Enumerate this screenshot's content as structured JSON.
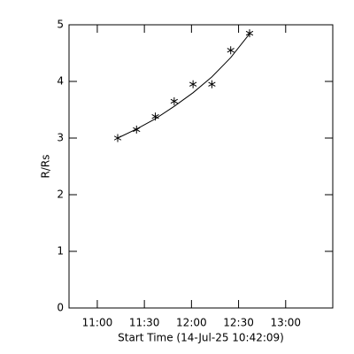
{
  "chart_data": {
    "type": "scatter",
    "xlabel": "Start Time (14-Jul-25 10:42:09)",
    "ylabel": "R/Rs",
    "x": [
      13,
      25,
      37,
      49,
      61,
      73,
      85,
      97
    ],
    "series": [
      {
        "mode": "markers",
        "color": "#000000",
        "values": [
          3.0,
          3.15,
          3.38,
          3.65,
          3.95,
          3.95,
          4.55,
          4.85
        ]
      },
      {
        "mode": "lines",
        "color": "#000000",
        "values": [
          3.0,
          3.16,
          3.34,
          3.56,
          3.8,
          4.08,
          4.42,
          4.84
        ]
      }
    ],
    "xlim": [
      -18,
      150
    ],
    "xticks": [
      {
        "value": 0,
        "label": "11:00"
      },
      {
        "value": 30,
        "label": "11:30"
      },
      {
        "value": 60,
        "label": "12:00"
      },
      {
        "value": 90,
        "label": "12:30"
      },
      {
        "value": 120,
        "label": "13:00"
      }
    ],
    "ylim": [
      0,
      5
    ],
    "yticks": [
      0,
      1,
      2,
      3,
      4,
      5
    ],
    "grid": false
  }
}
